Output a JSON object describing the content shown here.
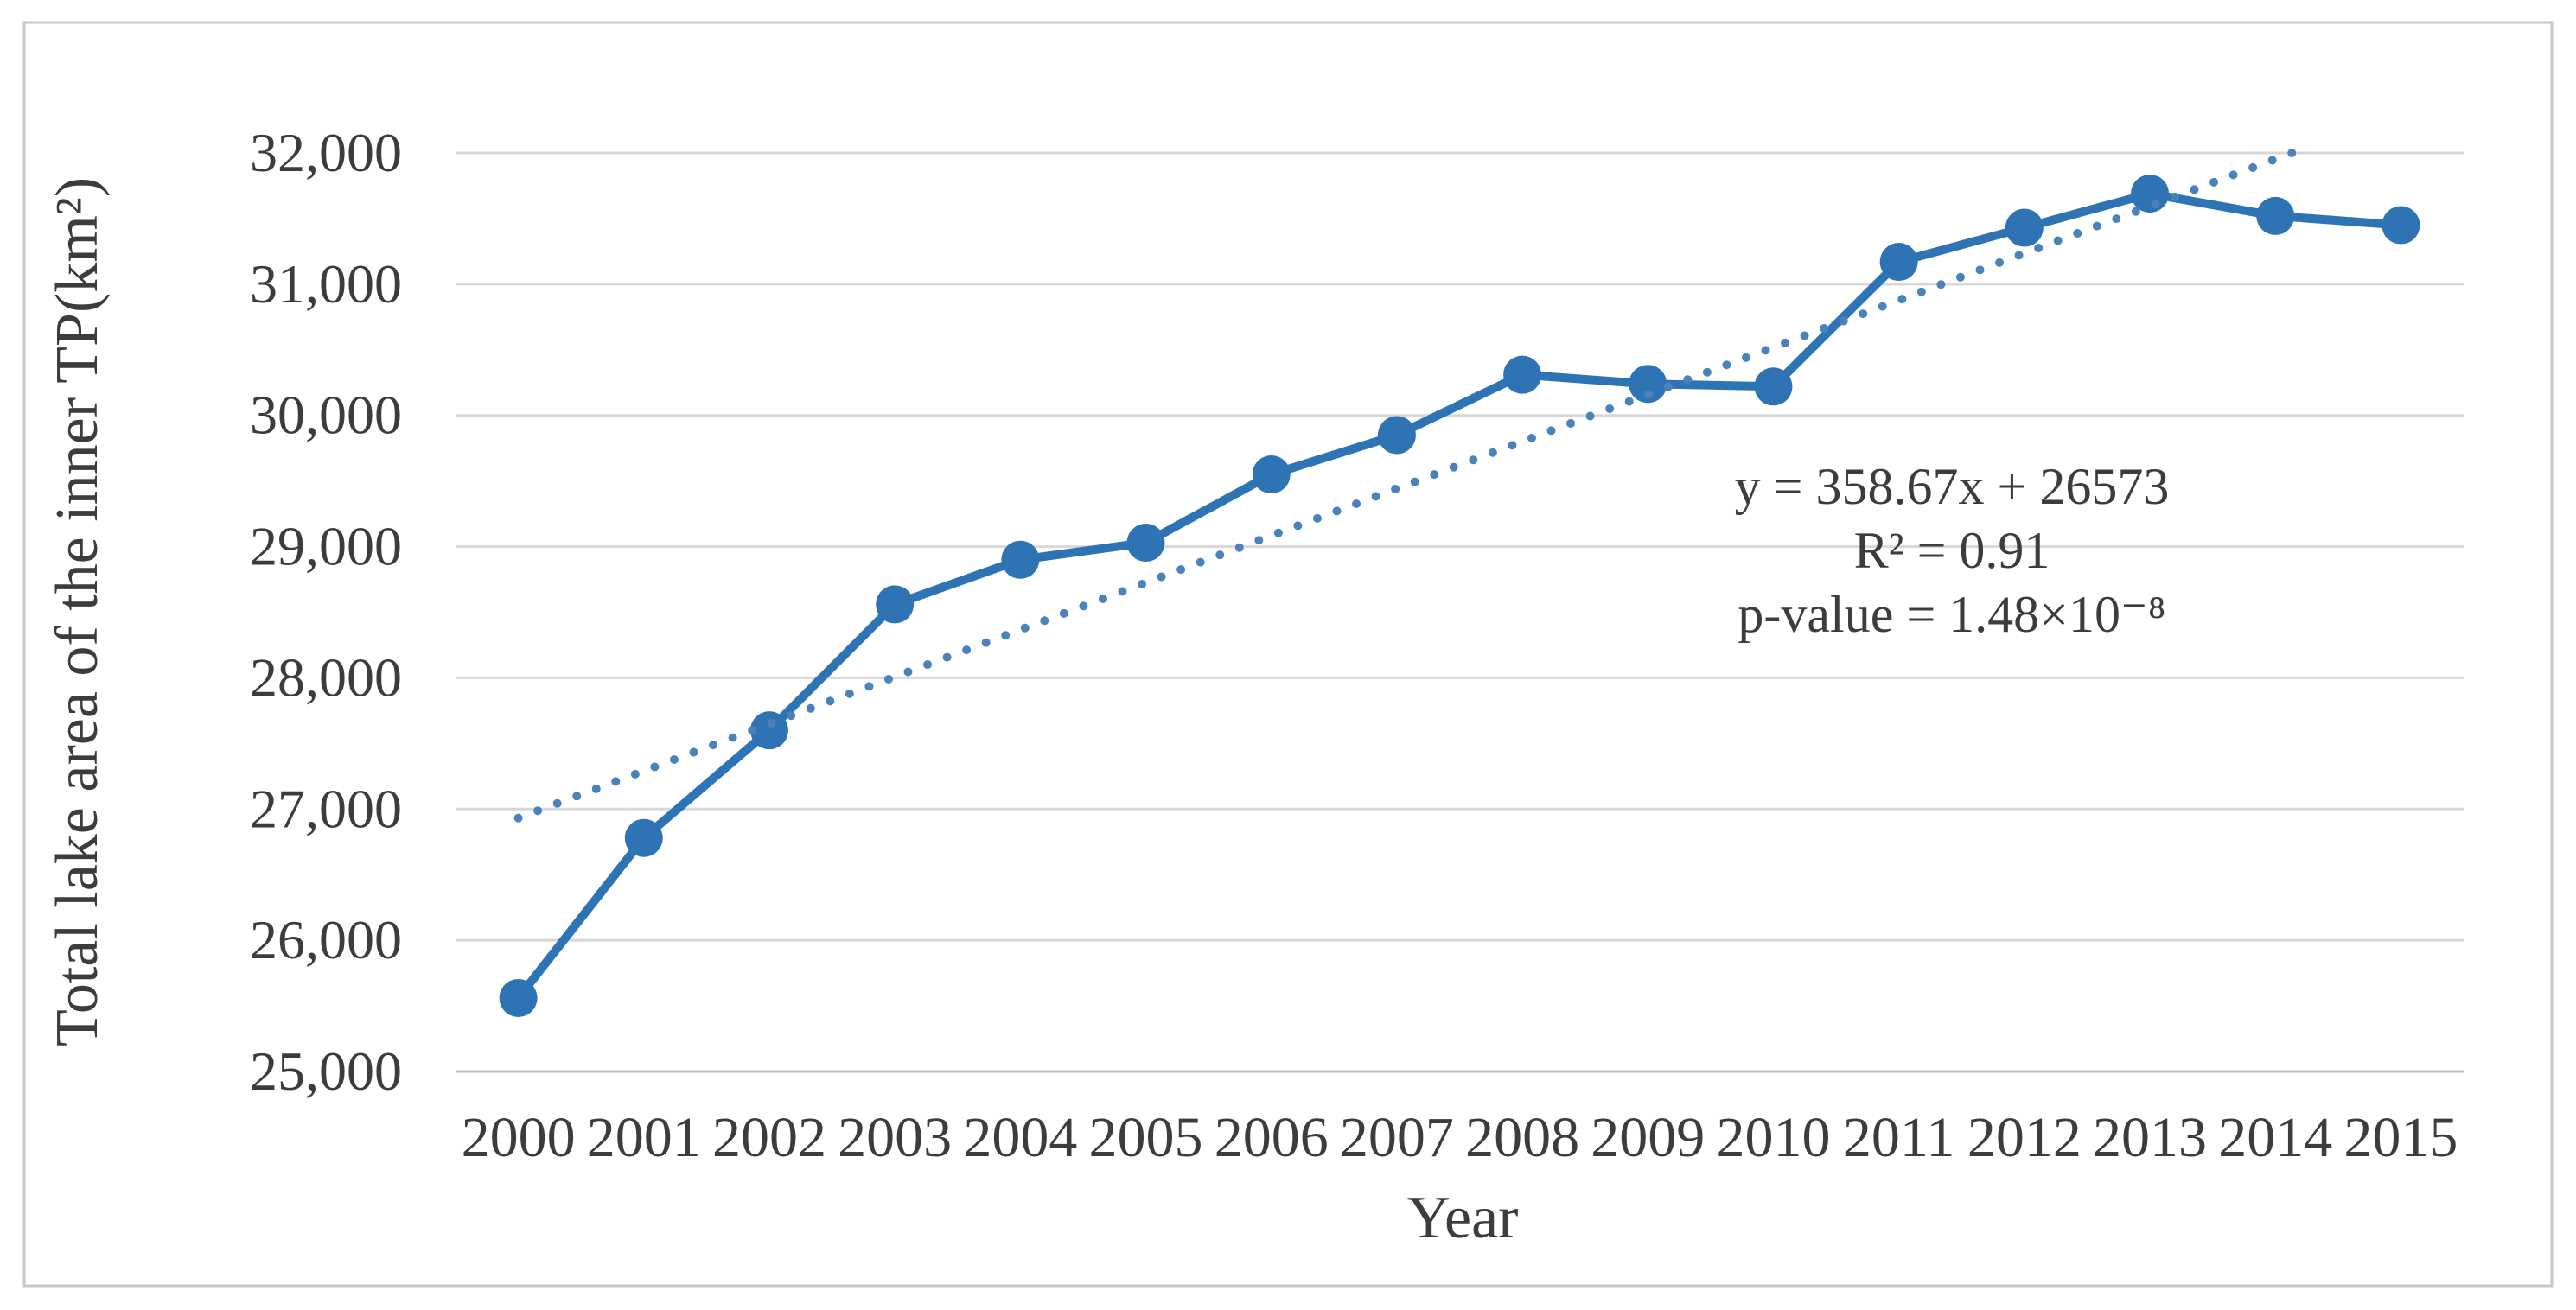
{
  "figure": {
    "background": "#ffffff",
    "border_color": "#c8c8c8"
  },
  "chart_data": {
    "type": "line",
    "title": "",
    "xlabel": "Year",
    "ylabel": "Total lake area of the inner TP(km²)",
    "categories": [
      "2000",
      "2001",
      "2002",
      "2003",
      "2004",
      "2005",
      "2006",
      "2007",
      "2008",
      "2009",
      "2010",
      "2011",
      "2012",
      "2013",
      "2014",
      "2015"
    ],
    "series": [
      {
        "name": "Total lake area of the inner TP",
        "values": [
          25560,
          26780,
          27600,
          28560,
          28900,
          29030,
          29550,
          29850,
          30310,
          30240,
          30220,
          31170,
          31430,
          31690,
          31520,
          31450
        ],
        "color": "#2e74b5",
        "marker": "circle",
        "line_style": "solid"
      }
    ],
    "trendline": {
      "equation": "y = 358.67x + 26573",
      "slope": 358.67,
      "intercept": 26573,
      "style": "dotted",
      "color": "#4a82bc",
      "clip_max_y": 32000
    },
    "annotation": {
      "lines": [
        "y = 358.67x + 26573",
        "R² = 0.91",
        "p-value = 1.48×10⁻⁸"
      ]
    },
    "ylim": [
      25000,
      32000
    ],
    "ytick_step": 1000,
    "ytick_labels": [
      "25,000",
      "26,000",
      "27,000",
      "28,000",
      "29,000",
      "30,000",
      "31,000",
      "32,000"
    ],
    "grid": true,
    "legend_position": "none",
    "grid_color": "#d8d8d8",
    "axis_line_color": "#bfbfbf",
    "text_color": "#3c3c3c"
  }
}
